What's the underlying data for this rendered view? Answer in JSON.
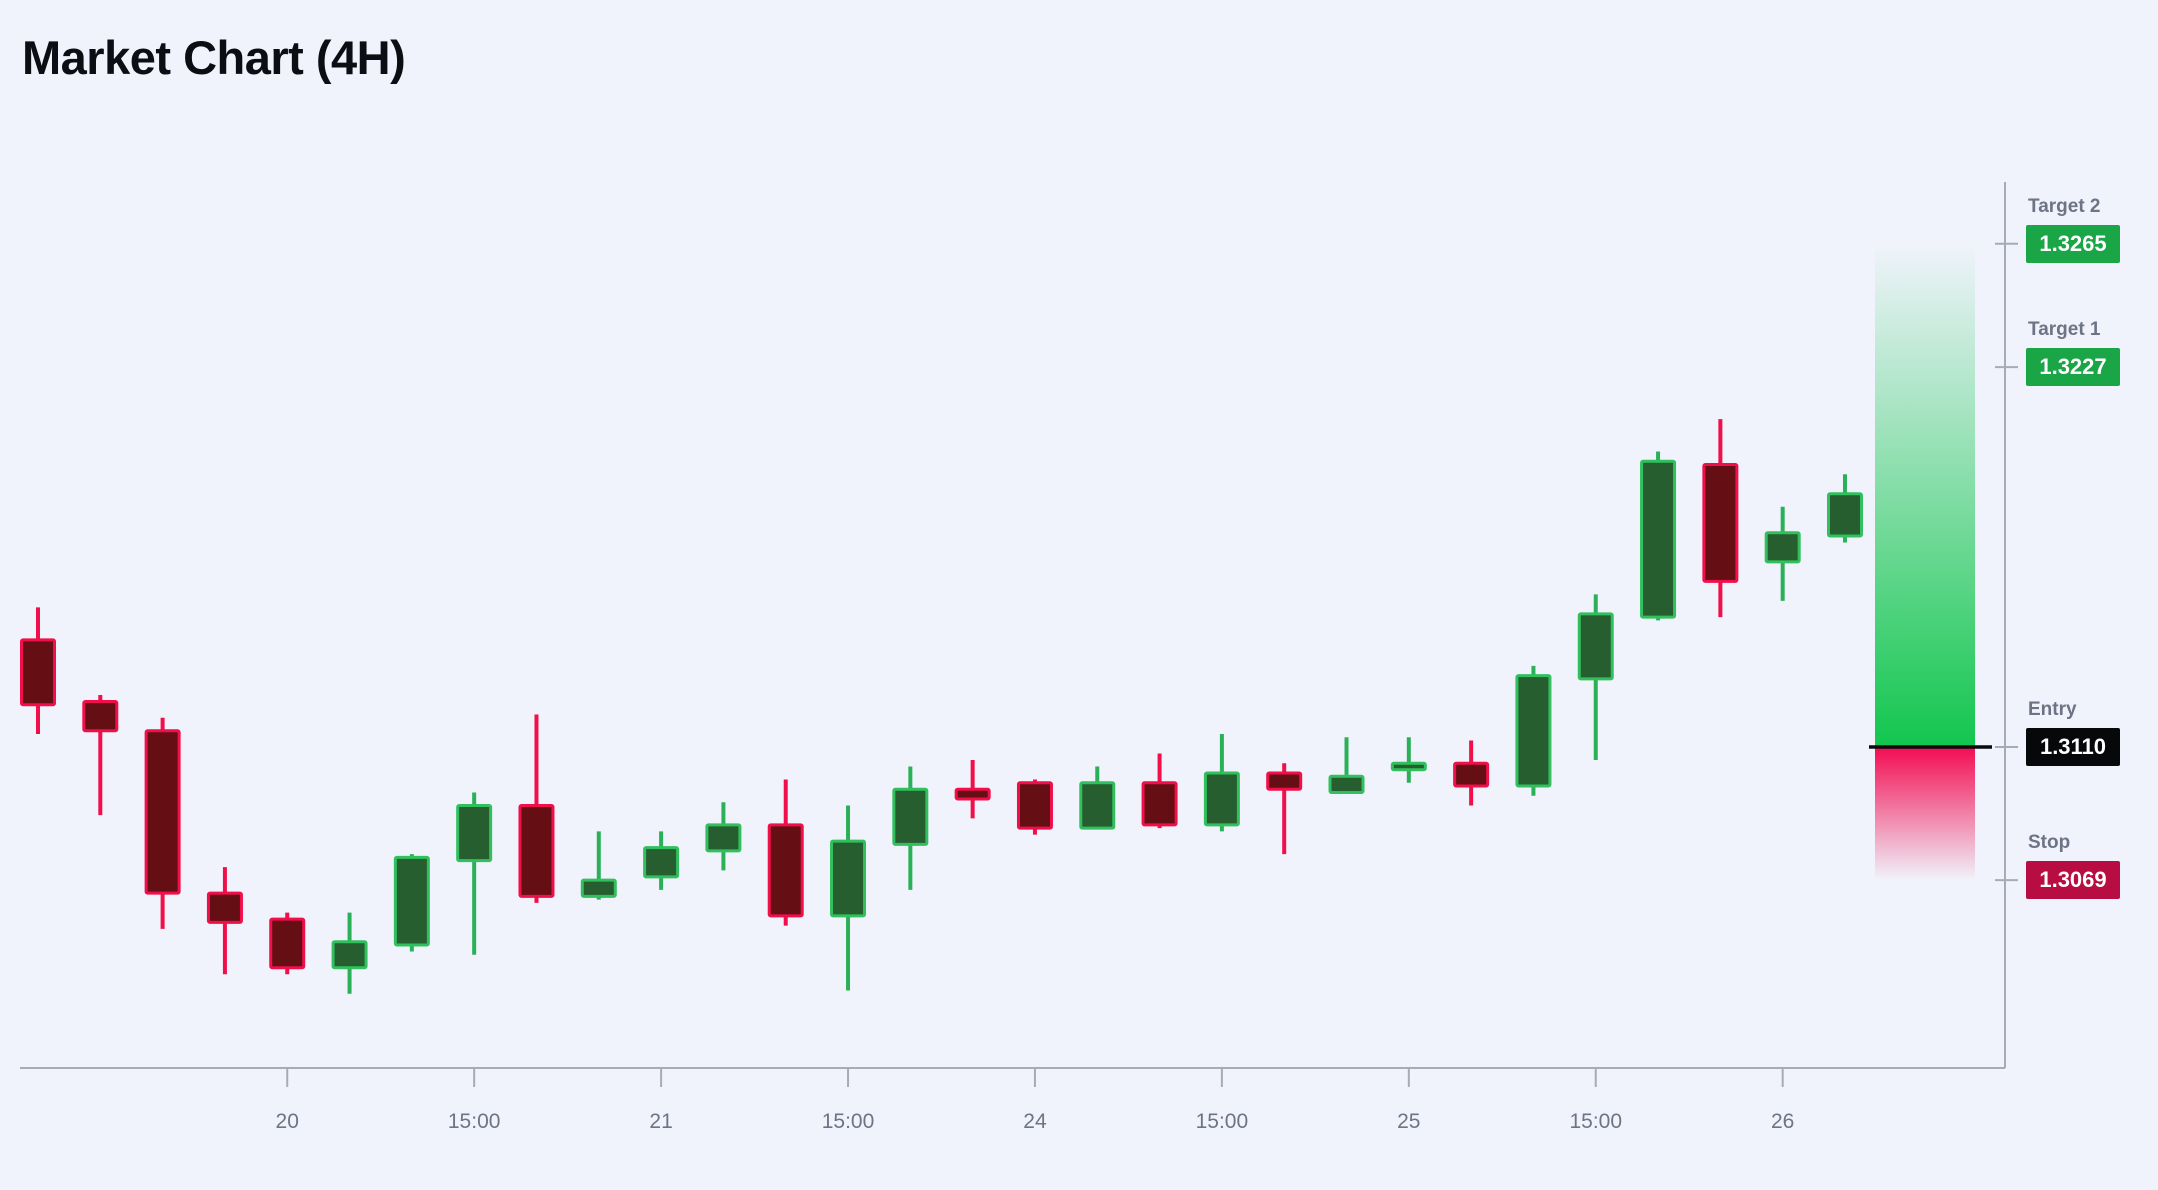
{
  "title": "Market Chart (4H)",
  "levels": [
    {
      "id": "target2",
      "label": "Target 2",
      "value": "1.3265",
      "price": 1.3265,
      "badge_color": "#1aa546",
      "text_color": "#ffffff"
    },
    {
      "id": "target1",
      "label": "Target 1",
      "value": "1.3227",
      "price": 1.3227,
      "badge_color": "#1aa546",
      "text_color": "#ffffff"
    },
    {
      "id": "entry",
      "label": "Entry",
      "value": "1.3110",
      "price": 1.311,
      "badge_color": "#07080a",
      "text_color": "#ffffff"
    },
    {
      "id": "stop",
      "label": "Stop",
      "value": "1.3069",
      "price": 1.3069,
      "badge_color": "#b80d42",
      "text_color": "#ffffff"
    }
  ],
  "chart_data": {
    "type": "candlestick",
    "title": "Market Chart (4H)",
    "timeframe": "4H",
    "xlabel": "",
    "ylabel": "",
    "ylim": [
      1.303,
      1.327
    ],
    "grid": false,
    "x_tick_labels": [
      {
        "candle_index": 4,
        "label": "20"
      },
      {
        "candle_index": 7,
        "label": "15:00"
      },
      {
        "candle_index": 10,
        "label": "21"
      },
      {
        "candle_index": 13,
        "label": "15:00"
      },
      {
        "candle_index": 16,
        "label": "24"
      },
      {
        "candle_index": 19,
        "label": "15:00"
      },
      {
        "candle_index": 22,
        "label": "25"
      },
      {
        "candle_index": 25,
        "label": "15:00"
      },
      {
        "candle_index": 28,
        "label": "26"
      }
    ],
    "candles": [
      {
        "o": 1.3143,
        "h": 1.3153,
        "l": 1.3114,
        "c": 1.3123,
        "dir": "down"
      },
      {
        "o": 1.3124,
        "h": 1.3126,
        "l": 1.3089,
        "c": 1.3115,
        "dir": "down"
      },
      {
        "o": 1.3115,
        "h": 1.3119,
        "l": 1.3054,
        "c": 1.3065,
        "dir": "down"
      },
      {
        "o": 1.3065,
        "h": 1.3073,
        "l": 1.304,
        "c": 1.3056,
        "dir": "down"
      },
      {
        "o": 1.3057,
        "h": 1.3059,
        "l": 1.304,
        "c": 1.3042,
        "dir": "down"
      },
      {
        "o": 1.3042,
        "h": 1.3059,
        "l": 1.3034,
        "c": 1.305,
        "dir": "up"
      },
      {
        "o": 1.3049,
        "h": 1.3077,
        "l": 1.3047,
        "c": 1.3076,
        "dir": "up"
      },
      {
        "o": 1.3075,
        "h": 1.3096,
        "l": 1.3046,
        "c": 1.3092,
        "dir": "up"
      },
      {
        "o": 1.3092,
        "h": 1.312,
        "l": 1.3062,
        "c": 1.3064,
        "dir": "down"
      },
      {
        "o": 1.3064,
        "h": 1.3084,
        "l": 1.3063,
        "c": 1.3069,
        "dir": "up"
      },
      {
        "o": 1.307,
        "h": 1.3084,
        "l": 1.3066,
        "c": 1.3079,
        "dir": "up"
      },
      {
        "o": 1.3078,
        "h": 1.3093,
        "l": 1.3072,
        "c": 1.3086,
        "dir": "up"
      },
      {
        "o": 1.3086,
        "h": 1.31,
        "l": 1.3055,
        "c": 1.3058,
        "dir": "down"
      },
      {
        "o": 1.3058,
        "h": 1.3092,
        "l": 1.3035,
        "c": 1.3081,
        "dir": "up"
      },
      {
        "o": 1.308,
        "h": 1.3104,
        "l": 1.3066,
        "c": 1.3097,
        "dir": "up"
      },
      {
        "o": 1.3097,
        "h": 1.3106,
        "l": 1.3088,
        "c": 1.3094,
        "dir": "down"
      },
      {
        "o": 1.3099,
        "h": 1.31,
        "l": 1.3083,
        "c": 1.3085,
        "dir": "down"
      },
      {
        "o": 1.3085,
        "h": 1.3104,
        "l": 1.3085,
        "c": 1.3099,
        "dir": "up"
      },
      {
        "o": 1.3099,
        "h": 1.3108,
        "l": 1.3085,
        "c": 1.3086,
        "dir": "down"
      },
      {
        "o": 1.3086,
        "h": 1.3114,
        "l": 1.3084,
        "c": 1.3102,
        "dir": "up"
      },
      {
        "o": 1.3102,
        "h": 1.3105,
        "l": 1.3077,
        "c": 1.3097,
        "dir": "down"
      },
      {
        "o": 1.3096,
        "h": 1.3113,
        "l": 1.3096,
        "c": 1.3101,
        "dir": "up"
      },
      {
        "o": 1.3103,
        "h": 1.3113,
        "l": 1.3099,
        "c": 1.3105,
        "dir": "up"
      },
      {
        "o": 1.3105,
        "h": 1.3112,
        "l": 1.3092,
        "c": 1.3098,
        "dir": "down"
      },
      {
        "o": 1.3098,
        "h": 1.3135,
        "l": 1.3095,
        "c": 1.3132,
        "dir": "up"
      },
      {
        "o": 1.3131,
        "h": 1.3157,
        "l": 1.3106,
        "c": 1.3151,
        "dir": "up"
      },
      {
        "o": 1.315,
        "h": 1.3201,
        "l": 1.3149,
        "c": 1.3198,
        "dir": "up"
      },
      {
        "o": 1.3197,
        "h": 1.3211,
        "l": 1.315,
        "c": 1.3161,
        "dir": "down"
      },
      {
        "o": 1.3167,
        "h": 1.3184,
        "l": 1.3155,
        "c": 1.3176,
        "dir": "up"
      },
      {
        "o": 1.3175,
        "h": 1.3194,
        "l": 1.3173,
        "c": 1.3188,
        "dir": "up"
      }
    ],
    "zones": {
      "profit": {
        "top_price": 1.3265,
        "bottom_price": 1.311
      },
      "loss": {
        "top_price": 1.311,
        "bottom_price": 1.3069
      }
    },
    "colors": {
      "background": "#f0f3fb",
      "up_body": "#265e2f",
      "up_border": "#32c05e",
      "up_wick": "#2ab158",
      "down_body": "#650e14",
      "down_border": "#f00f4a",
      "down_wick": "#f00f4a",
      "axis": "#a6abb6",
      "tick_label": "#6e7386",
      "entry_line": "#0b0b0e",
      "profit_gradient": "#12c64e",
      "loss_gradient": "#f20d52"
    },
    "legend": null
  }
}
